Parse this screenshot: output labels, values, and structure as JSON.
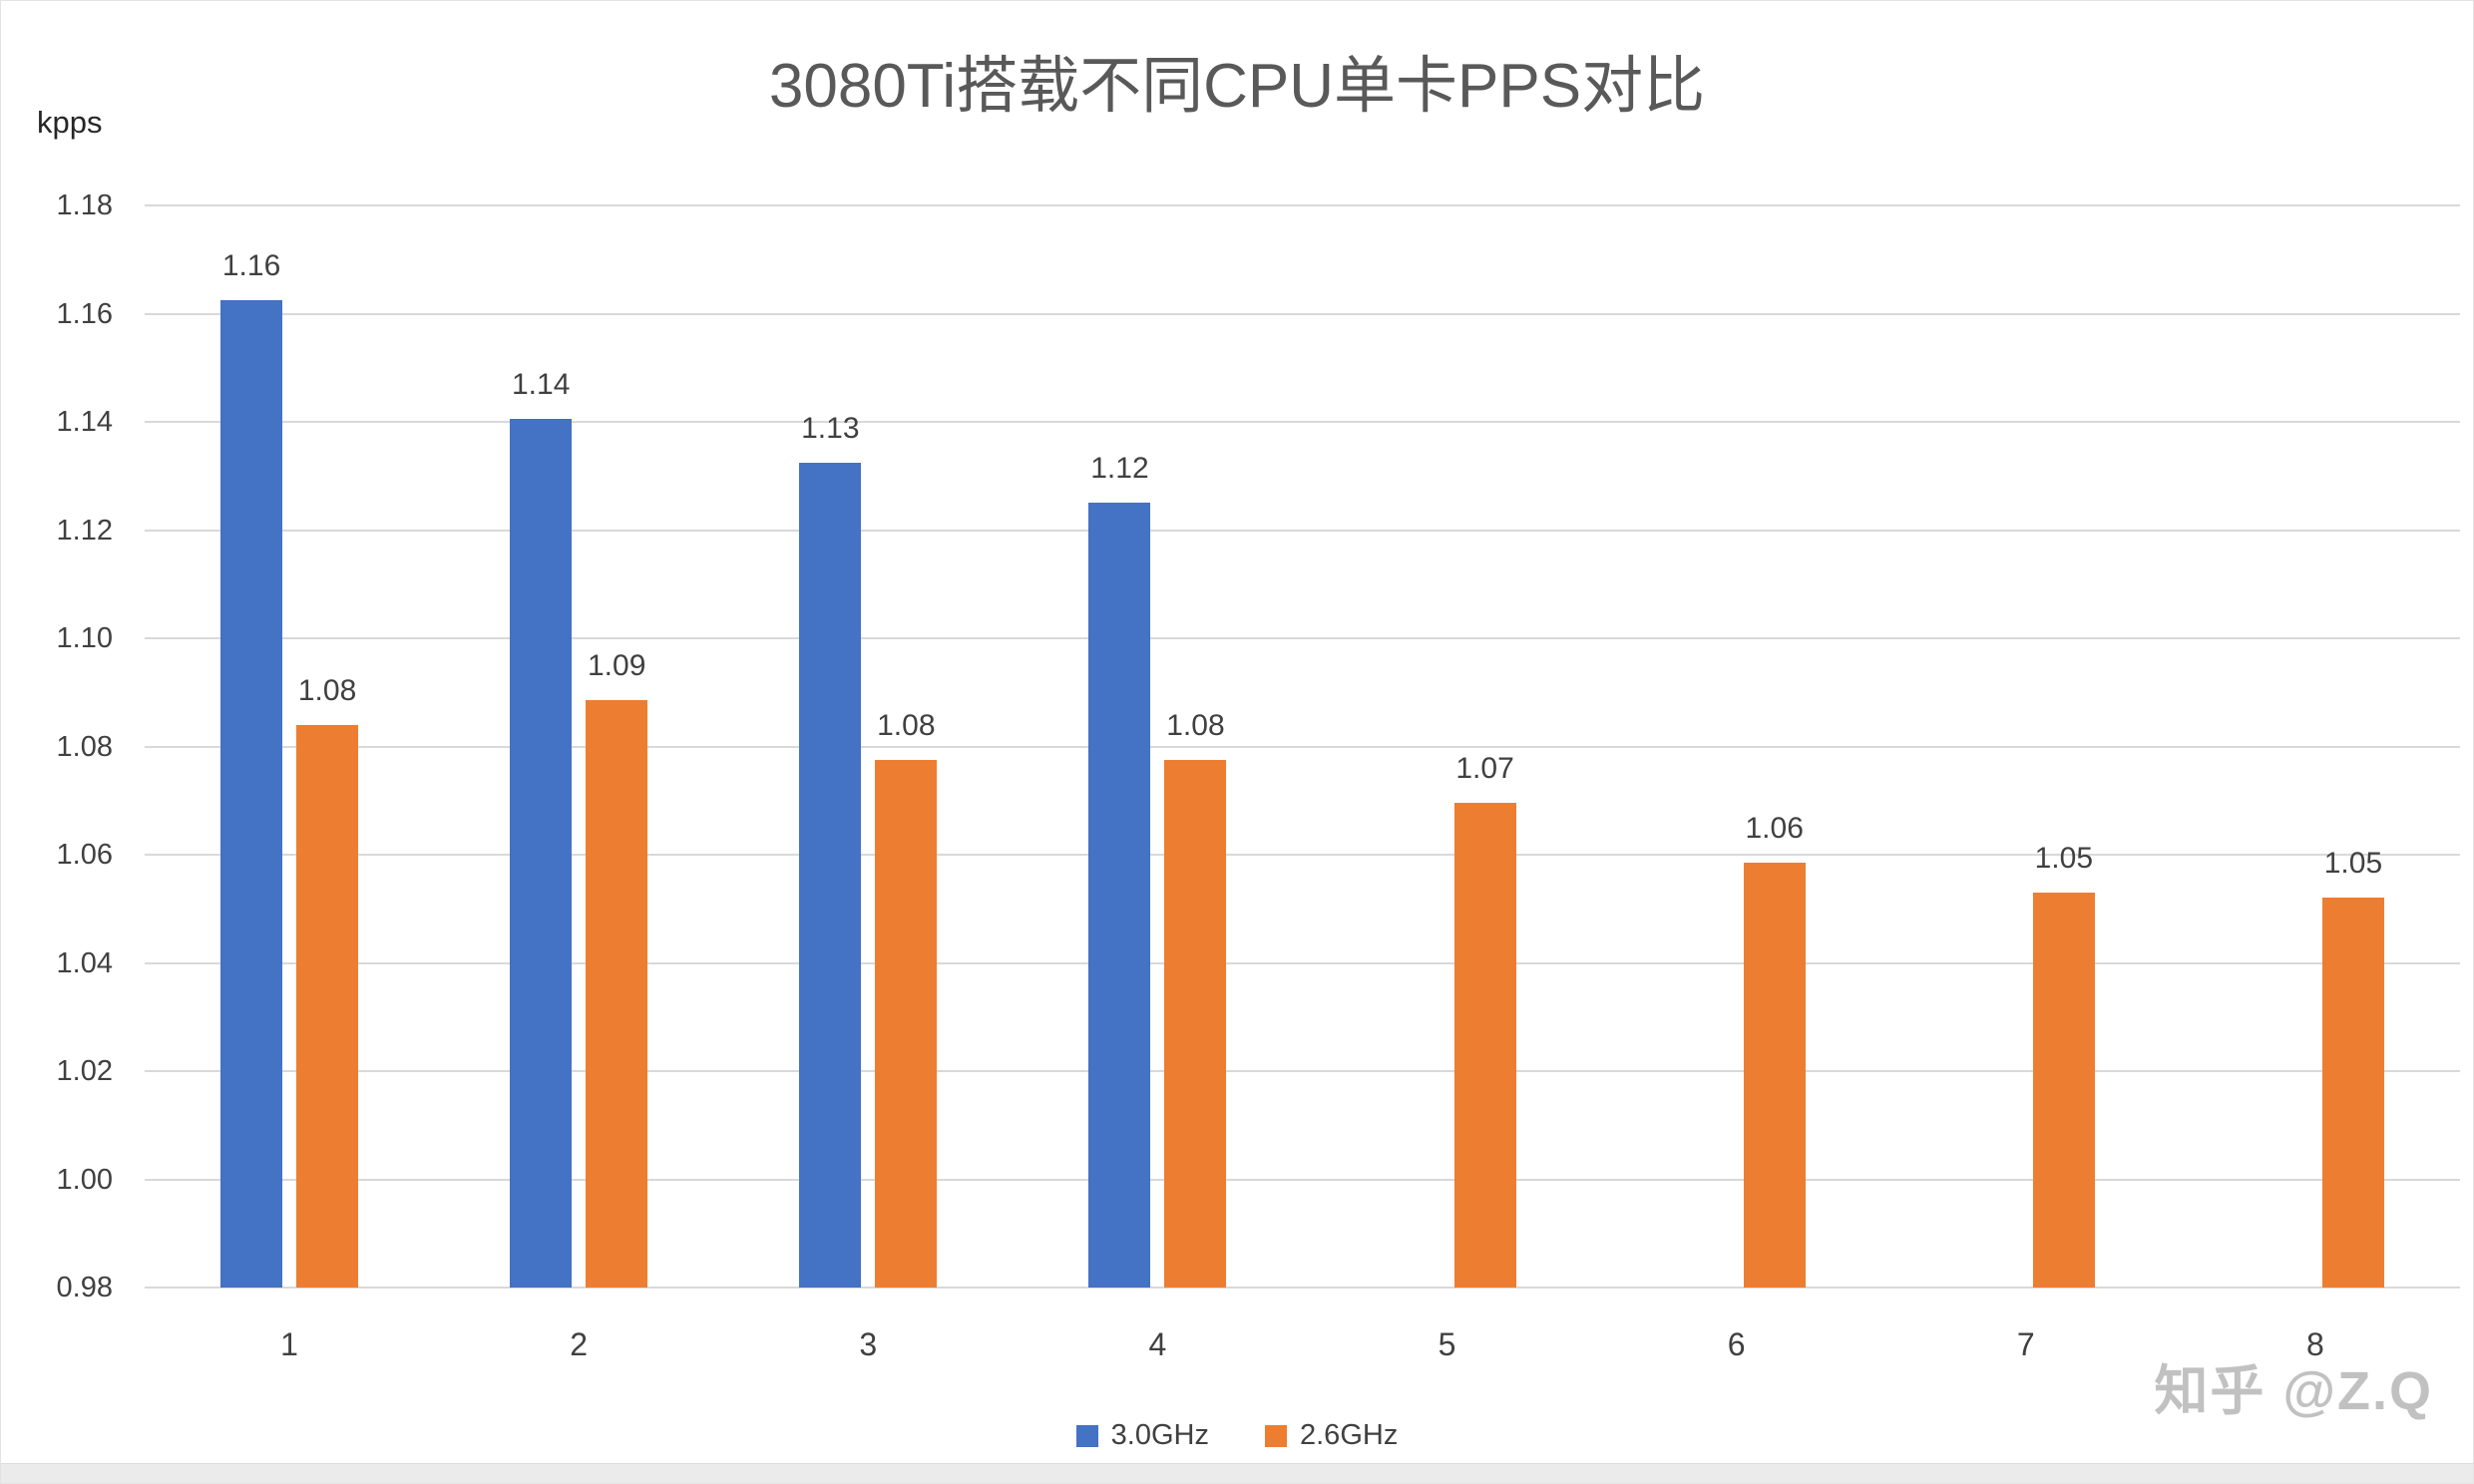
{
  "title": "3080Ti搭载不同CPU单卡PPS对比",
  "y_unit": "kpps",
  "watermark": "知乎 @Z.Q",
  "colors": {
    "series_3_0ghz": "#4472C4",
    "series_2_6ghz": "#ED7D31",
    "gridline": "#D9D9D9",
    "title_text": "#595959",
    "axis_text": "#404040"
  },
  "chart_data": {
    "type": "bar",
    "title": "3080Ti搭载不同CPU单卡PPS对比",
    "xlabel": "",
    "ylabel": "kpps",
    "categories": [
      "1",
      "2",
      "3",
      "4",
      "5",
      "6",
      "7",
      "8"
    ],
    "series": [
      {
        "name": "3.0GHz",
        "color": "#4472C4",
        "values": [
          1.1625,
          1.1405,
          1.1325,
          1.125,
          null,
          null,
          null,
          null
        ],
        "labels": [
          "1.16",
          "1.14",
          "1.13",
          "1.12",
          null,
          null,
          null,
          null
        ]
      },
      {
        "name": "2.6GHz",
        "color": "#ED7D31",
        "values": [
          1.084,
          1.0885,
          1.0775,
          1.0775,
          1.0695,
          1.0585,
          1.053,
          1.052
        ],
        "labels": [
          "1.08",
          "1.09",
          "1.08",
          "1.08",
          "1.07",
          "1.06",
          "1.05",
          "1.05"
        ]
      }
    ],
    "ylim": [
      0.98,
      1.18
    ],
    "y_ticks": [
      "1.18",
      "1.16",
      "1.14",
      "1.12",
      "1.10",
      "1.08",
      "1.06",
      "1.04",
      "1.02",
      "1.00",
      "0.98"
    ],
    "grid": true,
    "legend_position": "bottom"
  }
}
